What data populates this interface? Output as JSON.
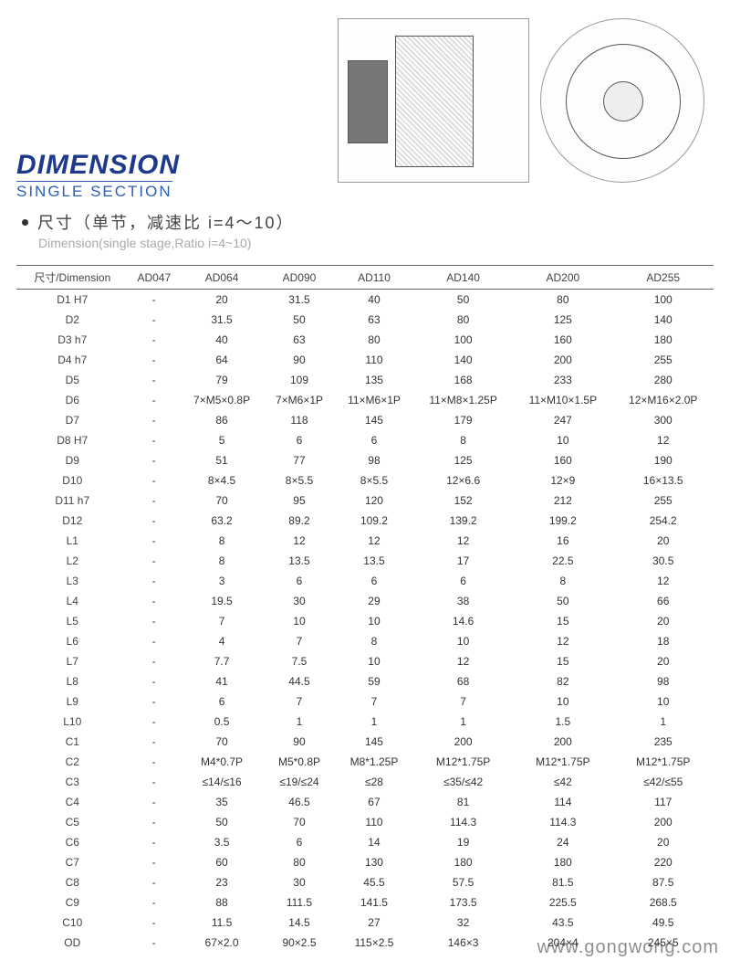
{
  "heading": {
    "main": "DIMENSION",
    "sub": "SINGLE SECTION"
  },
  "section": {
    "cn": "尺寸（单节，减速比 i=4～10）",
    "en": "Dimension(single stage,Ratio i=4~10)"
  },
  "table": {
    "header_label": "尺寸/Dimension",
    "columns": [
      "AD047",
      "AD064",
      "AD090",
      "AD110",
      "AD140",
      "AD200",
      "AD255"
    ],
    "rows": [
      {
        "k": "D1 H7",
        "v": [
          "-",
          "20",
          "31.5",
          "40",
          "50",
          "80",
          "100"
        ]
      },
      {
        "k": "D2",
        "v": [
          "-",
          "31.5",
          "50",
          "63",
          "80",
          "125",
          "140"
        ]
      },
      {
        "k": "D3 h7",
        "v": [
          "-",
          "40",
          "63",
          "80",
          "100",
          "160",
          "180"
        ]
      },
      {
        "k": "D4 h7",
        "v": [
          "-",
          "64",
          "90",
          "110",
          "140",
          "200",
          "255"
        ]
      },
      {
        "k": "D5",
        "v": [
          "-",
          "79",
          "109",
          "135",
          "168",
          "233",
          "280"
        ]
      },
      {
        "k": "D6",
        "v": [
          "-",
          "7×M5×0.8P",
          "7×M6×1P",
          "11×M6×1P",
          "11×M8×1.25P",
          "11×M10×1.5P",
          "12×M16×2.0P"
        ]
      },
      {
        "k": "D7",
        "v": [
          "-",
          "86",
          "118",
          "145",
          "179",
          "247",
          "300"
        ]
      },
      {
        "k": "D8 H7",
        "v": [
          "-",
          "5",
          "6",
          "6",
          "8",
          "10",
          "12"
        ]
      },
      {
        "k": "D9",
        "v": [
          "-",
          "51",
          "77",
          "98",
          "125",
          "160",
          "190"
        ]
      },
      {
        "k": "D10",
        "v": [
          "-",
          "8×4.5",
          "8×5.5",
          "8×5.5",
          "12×6.6",
          "12×9",
          "16×13.5"
        ]
      },
      {
        "k": "D11 h7",
        "v": [
          "-",
          "70",
          "95",
          "120",
          "152",
          "212",
          "255"
        ]
      },
      {
        "k": "D12",
        "v": [
          "-",
          "63.2",
          "89.2",
          "109.2",
          "139.2",
          "199.2",
          "254.2"
        ]
      },
      {
        "k": "L1",
        "v": [
          "-",
          "8",
          "12",
          "12",
          "12",
          "16",
          "20"
        ]
      },
      {
        "k": "L2",
        "v": [
          "-",
          "8",
          "13.5",
          "13.5",
          "17",
          "22.5",
          "30.5"
        ]
      },
      {
        "k": "L3",
        "v": [
          "-",
          "3",
          "6",
          "6",
          "6",
          "8",
          "12"
        ]
      },
      {
        "k": "L4",
        "v": [
          "-",
          "19.5",
          "30",
          "29",
          "38",
          "50",
          "66"
        ]
      },
      {
        "k": "L5",
        "v": [
          "-",
          "7",
          "10",
          "10",
          "14.6",
          "15",
          "20"
        ]
      },
      {
        "k": "L6",
        "v": [
          "-",
          "4",
          "7",
          "8",
          "10",
          "12",
          "18"
        ]
      },
      {
        "k": "L7",
        "v": [
          "-",
          "7.7",
          "7.5",
          "10",
          "12",
          "15",
          "20"
        ]
      },
      {
        "k": "L8",
        "v": [
          "-",
          "41",
          "44.5",
          "59",
          "68",
          "82",
          "98"
        ]
      },
      {
        "k": "L9",
        "v": [
          "-",
          "6",
          "7",
          "7",
          "7",
          "10",
          "10"
        ]
      },
      {
        "k": "L10",
        "v": [
          "-",
          "0.5",
          "1",
          "1",
          "1",
          "1.5",
          "1"
        ]
      },
      {
        "k": "C1",
        "v": [
          "-",
          "70",
          "90",
          "145",
          "200",
          "200",
          "235"
        ]
      },
      {
        "k": "C2",
        "v": [
          "-",
          "M4*0.7P",
          "M5*0.8P",
          "M8*1.25P",
          "M12*1.75P",
          "M12*1.75P",
          "M12*1.75P"
        ]
      },
      {
        "k": "C3",
        "v": [
          "-",
          "≤14/≤16",
          "≤19/≤24",
          "≤28",
          "≤35/≤42",
          "≤42",
          "≤42/≤55"
        ]
      },
      {
        "k": "C4",
        "v": [
          "-",
          "35",
          "46.5",
          "67",
          "81",
          "114",
          "117"
        ]
      },
      {
        "k": "C5",
        "v": [
          "-",
          "50",
          "70",
          "110",
          "114.3",
          "114.3",
          "200"
        ]
      },
      {
        "k": "C6",
        "v": [
          "-",
          "3.5",
          "6",
          "14",
          "19",
          "24",
          "20"
        ]
      },
      {
        "k": "C7",
        "v": [
          "-",
          "60",
          "80",
          "130",
          "180",
          "180",
          "220"
        ]
      },
      {
        "k": "C8",
        "v": [
          "-",
          "23",
          "30",
          "45.5",
          "57.5",
          "81.5",
          "87.5"
        ]
      },
      {
        "k": "C9",
        "v": [
          "-",
          "88",
          "111.5",
          "141.5",
          "173.5",
          "225.5",
          "268.5"
        ]
      },
      {
        "k": "C10",
        "v": [
          "-",
          "11.5",
          "14.5",
          "27",
          "32",
          "43.5",
          "49.5"
        ]
      },
      {
        "k": "OD",
        "v": [
          "-",
          "67×2.0",
          "90×2.5",
          "115×2.5",
          "146×3",
          "204×4",
          "245×5"
        ]
      }
    ]
  },
  "watermark": "www.gongwong.com"
}
